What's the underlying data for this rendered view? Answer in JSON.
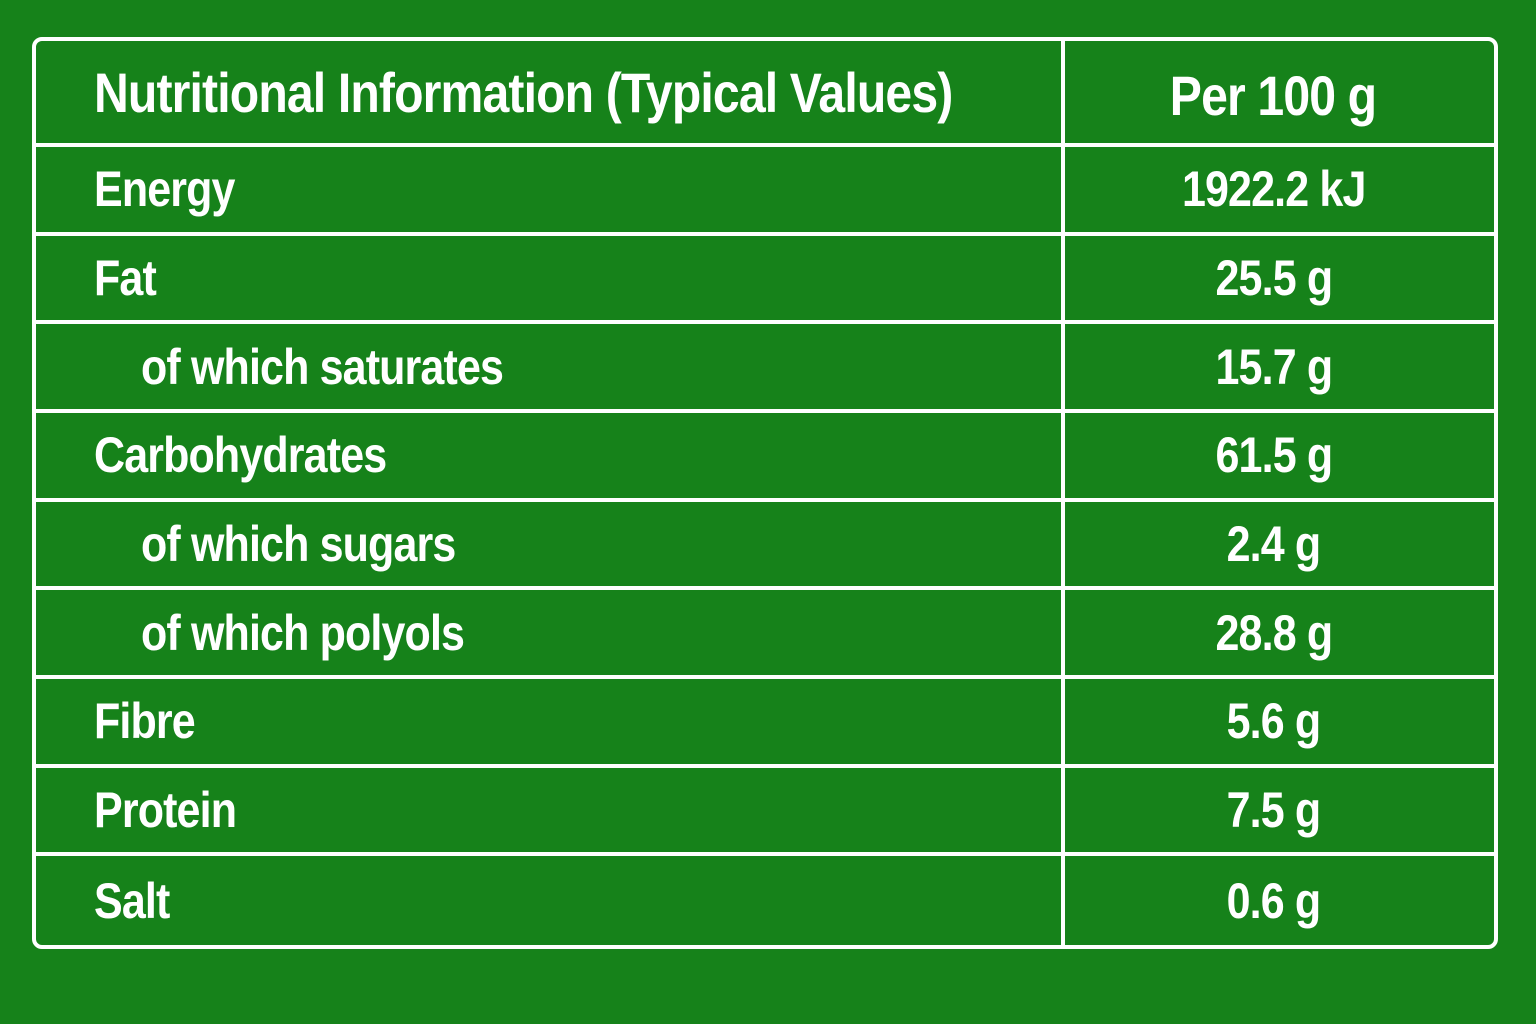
{
  "table": {
    "header": {
      "label": "Nutritional Information (Typical Values)",
      "value": "Per 100 g"
    },
    "rows": [
      {
        "label": "Energy",
        "value": "1922.2 kJ",
        "indent": false
      },
      {
        "label": "Fat",
        "value": "25.5 g",
        "indent": false
      },
      {
        "label": "of which saturates",
        "value": "15.7 g",
        "indent": true
      },
      {
        "label": "Carbohydrates",
        "value": "61.5 g",
        "indent": false
      },
      {
        "label": "of which sugars",
        "value": "2.4 g",
        "indent": true
      },
      {
        "label": "of which polyols",
        "value": "28.8 g",
        "indent": true
      },
      {
        "label": "Fibre",
        "value": "5.6 g",
        "indent": false
      },
      {
        "label": "Protein",
        "value": "7.5 g",
        "indent": false
      },
      {
        "label": "Salt",
        "value": "0.6 g",
        "indent": false
      }
    ]
  },
  "colors": {
    "background": "#16821a",
    "lines_and_text": "#ffffff"
  }
}
